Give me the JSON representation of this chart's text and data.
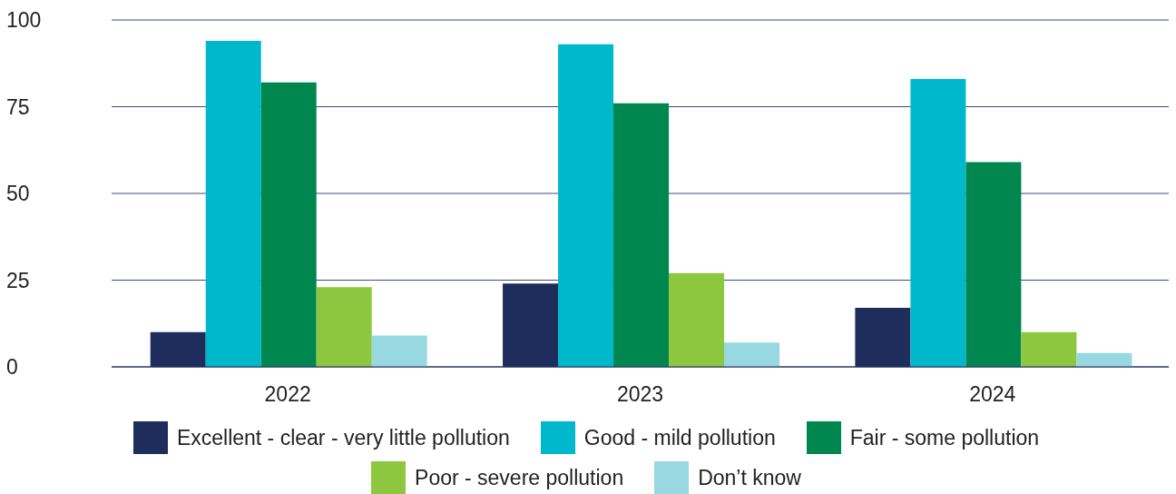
{
  "chart_data": {
    "type": "bar",
    "categories": [
      "2022",
      "2023",
      "2024"
    ],
    "series": [
      {
        "name": "Excellent - clear - very little pollution",
        "color": "#1f2d5c",
        "values": [
          10,
          24,
          17
        ]
      },
      {
        "name": "Good - mild pollution",
        "color": "#00b8cc",
        "values": [
          94,
          93,
          83
        ]
      },
      {
        "name": "Fair - some pollution",
        "color": "#00874f",
        "values": [
          82,
          76,
          59
        ]
      },
      {
        "name": "Poor - severe pollution",
        "color": "#8dc63f",
        "values": [
          23,
          27,
          10
        ]
      },
      {
        "name": "Don’t know",
        "color": "#98d8e0",
        "values": [
          9,
          7,
          4
        ]
      }
    ],
    "ylim": [
      0,
      100
    ],
    "yticks": [
      0,
      25,
      50,
      75,
      100
    ],
    "grid": "y",
    "legend": "bottom"
  }
}
